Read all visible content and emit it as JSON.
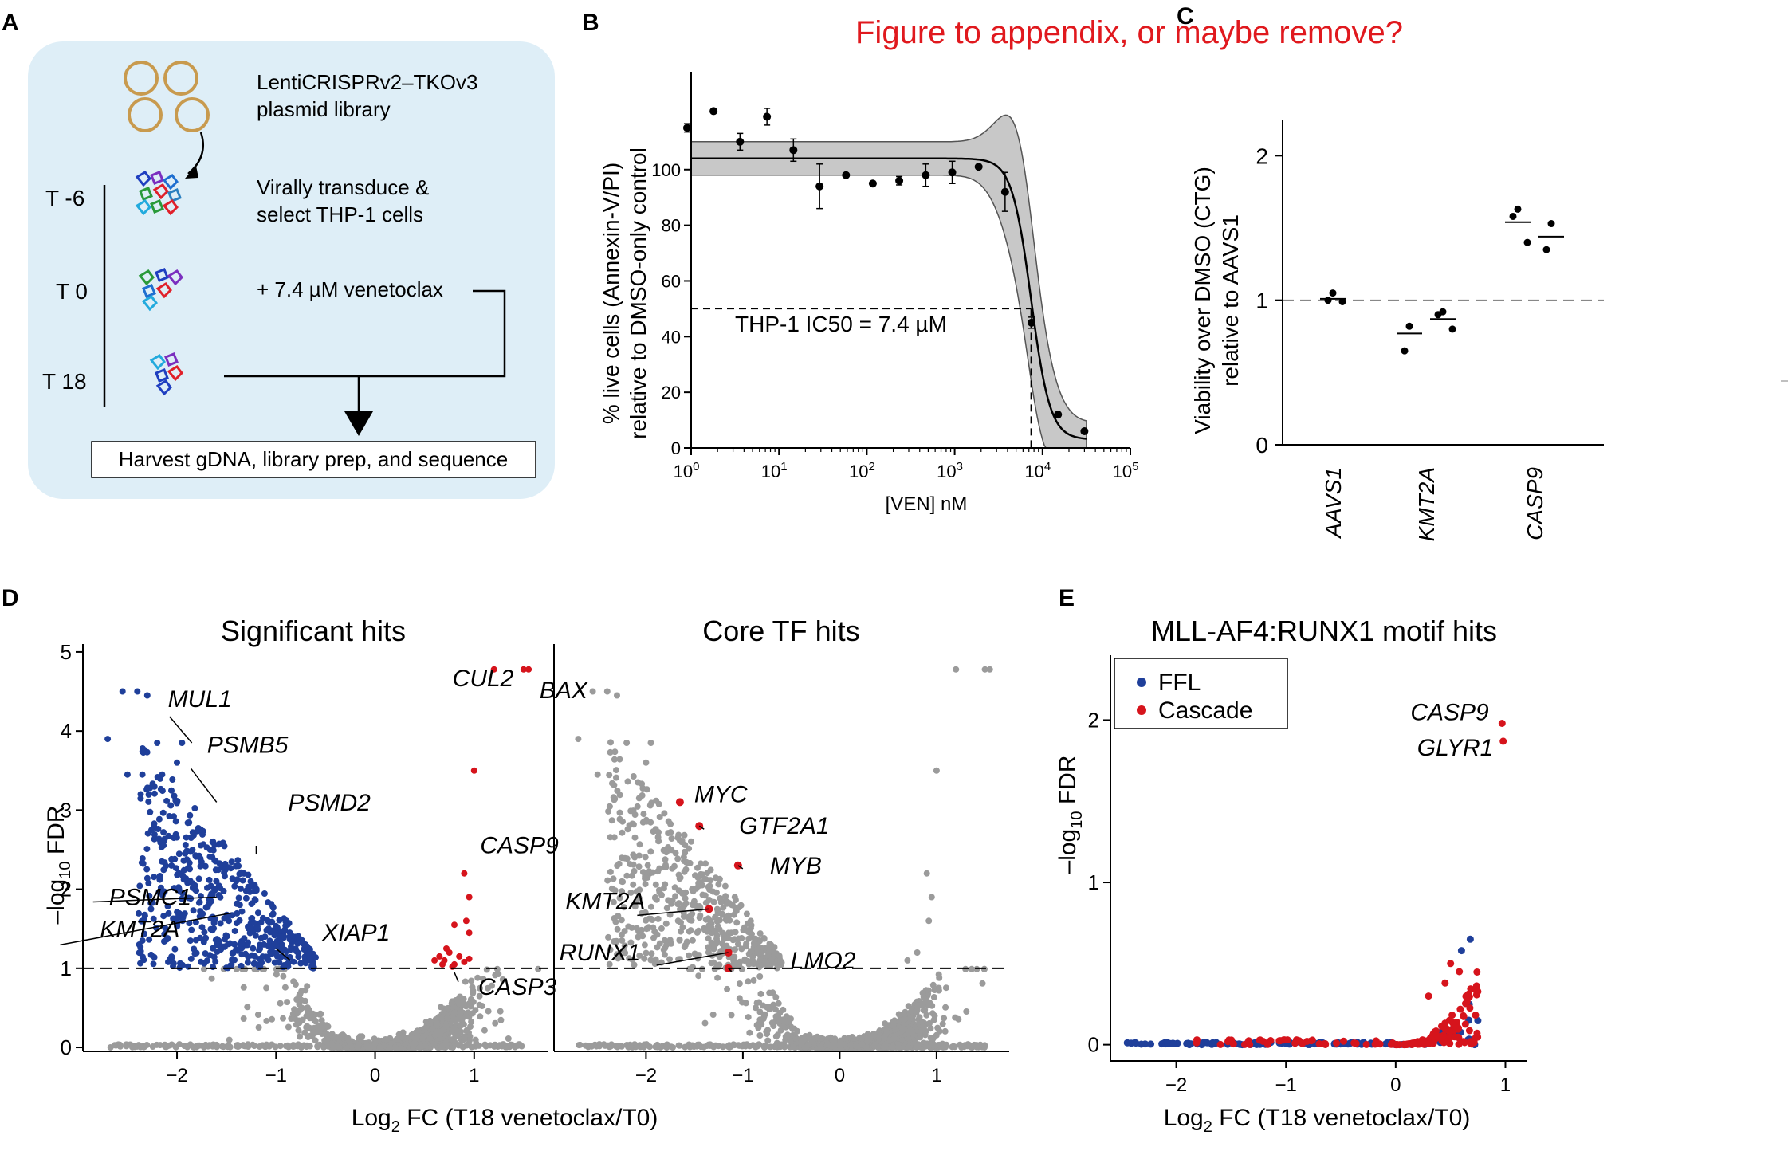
{
  "panel_labels": {
    "a": "A",
    "b": "B",
    "c": "C",
    "d": "D",
    "e": "E"
  },
  "note": "Figure to appendix, or maybe remove?",
  "colors": {
    "note": "#e0191e",
    "panel_bg": "#deeef7",
    "blue": "#1f3f9a",
    "red": "#d6141c",
    "grey": "#9b9b9b",
    "ci_band": "#c8c8c8",
    "plasmid": "#c89a4e"
  },
  "panel_a": {
    "library_l1": "LentiCRISPRv2–TKOv3",
    "library_l2": "plasmid library",
    "step1_l1": "Virally transduce &",
    "step1_l2": "select THP-1 cells",
    "step2": "+ 7.4 µM venetoclax",
    "t_minus6": "T -6",
    "t0": "T 0",
    "t18": "T 18",
    "harvest": "Harvest gDNA, library prep, and sequence"
  },
  "chart_data": [
    {
      "panel": "B",
      "type": "scatter",
      "ylabel_l1": "% live cells (Annexin-V/PI)",
      "ylabel_l2": "relative to DMSO-only control",
      "xlabel": "[VEN] nM",
      "xscale": "log",
      "xlim_log10": [
        0,
        5
      ],
      "ylim": [
        0,
        130
      ],
      "yticks": [
        "0",
        "20",
        "40",
        "60",
        "80",
        "100"
      ],
      "xticks_base": "10",
      "xticks_exp": [
        "0",
        "1",
        "2",
        "3",
        "4",
        "5"
      ],
      "annotation": "THP-1 IC50 = 7.4 µM",
      "ic50_nM": 7400,
      "x": [
        0.9,
        1.8,
        3.6,
        7.3,
        14.6,
        29,
        58,
        117,
        234,
        469,
        938,
        1875,
        3750,
        7500,
        15000,
        30000
      ],
      "y": [
        115,
        121,
        110,
        119,
        107,
        94,
        98,
        95,
        96,
        98,
        99,
        101,
        92,
        45,
        12,
        6
      ],
      "err": [
        1.5,
        1,
        3,
        3,
        4,
        8,
        1,
        1,
        1.5,
        4,
        4,
        1,
        7,
        2,
        1,
        1
      ],
      "fit_top": 104,
      "fit_bottom": 3,
      "fit_hill": 4,
      "band_half_width": 6
    },
    {
      "panel": "C",
      "type": "scatter",
      "ylabel_l1": "Viability over DMSO (CTG)",
      "ylabel_l2": "relative to AAVS1",
      "ylim": [
        0,
        2.25
      ],
      "yticks": [
        "0",
        "1",
        "2"
      ],
      "reference_line": 1,
      "categories": [
        "AAVS1",
        "KMT2A",
        "CASP9"
      ],
      "groups": [
        {
          "category": "AAVS1",
          "replicates": [
            {
              "points": [
                1.05,
                1.0,
                0.99
              ],
              "mean": 1.01
            }
          ]
        },
        {
          "category": "KMT2A",
          "replicates": [
            {
              "points": [
                0.82,
                0.65
              ],
              "mean": 0.77
            },
            {
              "points": [
                0.92,
                0.9,
                0.8
              ],
              "mean": 0.87
            }
          ]
        },
        {
          "category": "CASP9",
          "replicates": [
            {
              "points": [
                1.63,
                1.58,
                1.4
              ],
              "mean": 1.54
            },
            {
              "points": [
                1.53,
                1.35
              ],
              "mean": 1.44
            }
          ]
        }
      ]
    },
    {
      "panel": "D-left",
      "type": "scatter",
      "title": "Significant hits",
      "xlabel_pre": "Log",
      "xlabel_sub": "2",
      "xlabel_post": " FC (T18 venetoclax/T0)",
      "ylabel_pre": "–log",
      "ylabel_sub": "10",
      "ylabel_post": " FDR",
      "xlim": [
        -2.95,
        1.75
      ],
      "ylim": [
        -0.05,
        5.1
      ],
      "xticks": [
        -2,
        -1,
        0,
        1
      ],
      "xtick_labels": [
        "−2",
        "−1",
        "0",
        "1"
      ],
      "yticks": [
        0,
        1,
        2,
        3,
        4,
        5
      ],
      "ytick_labels": [
        "0",
        "1",
        "2",
        "3",
        "4",
        "5"
      ],
      "threshold": 1,
      "series": [
        {
          "color_key": "grey",
          "points": []
        },
        {
          "color_key": "blue",
          "points": []
        },
        {
          "color_key": "red",
          "points": [
            [
              1.2,
              4.78
            ],
            [
              1.5,
              4.78
            ],
            [
              1.55,
              4.78
            ],
            [
              1.0,
              3.5
            ],
            [
              0.9,
              2.2
            ],
            [
              0.95,
              1.9
            ],
            [
              0.92,
              1.6
            ],
            [
              0.8,
              1.55
            ],
            [
              0.95,
              1.45
            ],
            [
              0.6,
              1.1
            ],
            [
              0.65,
              1.15
            ],
            [
              0.7,
              1.1
            ],
            [
              0.75,
              1.2
            ],
            [
              0.8,
              1.05
            ],
            [
              0.85,
              1.15
            ],
            [
              0.72,
              1.25
            ],
            [
              0.9,
              1.08
            ],
            [
              0.78,
              1.02
            ],
            [
              0.95,
              1.12
            ],
            [
              0.68,
              1.05
            ]
          ]
        }
      ],
      "labels": [
        {
          "text": "CUL2",
          "x": 1.2,
          "y": 4.78
        },
        {
          "text": "BAX",
          "x": 1.5,
          "y": 4.78
        },
        {
          "text": "MUL1",
          "x": -1.85,
          "y": 3.85
        },
        {
          "text": "PSMB5",
          "x": -1.6,
          "y": 3.1
        },
        {
          "text": "PSMD2",
          "x": -1.2,
          "y": 2.55
        },
        {
          "text": "CASP9",
          "x": 0.9,
          "y": 2.2
        },
        {
          "text": "PSMC1",
          "x": -1.6,
          "y": 1.9
        },
        {
          "text": "KMT2A",
          "x": -1.45,
          "y": 1.7
        },
        {
          "text": "XIAP1",
          "x": -1.0,
          "y": 1.25
        },
        {
          "text": "CASP3",
          "x": 0.8,
          "y": 0.95
        }
      ]
    },
    {
      "panel": "D-right",
      "type": "scatter",
      "title": "Core TF hits",
      "xlim": [
        -2.95,
        1.75
      ],
      "ylim": [
        -0.05,
        5.1
      ],
      "xticks": [
        -2,
        -1,
        0,
        1
      ],
      "xtick_labels": [
        "−2",
        "−1",
        "0",
        "1"
      ],
      "threshold": 1,
      "series": [
        {
          "color_key": "grey",
          "points": []
        },
        {
          "color_key": "red",
          "points": [
            [
              -1.65,
              3.1
            ],
            [
              -1.45,
              2.8
            ],
            [
              -1.05,
              2.3
            ],
            [
              -1.35,
              1.75
            ],
            [
              -1.15,
              1.2
            ],
            [
              -1.15,
              1.0
            ]
          ]
        }
      ],
      "labels": [
        {
          "text": "MYC",
          "x": -1.65,
          "y": 3.1
        },
        {
          "text": "GTF2A1",
          "x": -1.45,
          "y": 2.8
        },
        {
          "text": "MYB",
          "x": -1.05,
          "y": 2.3
        },
        {
          "text": "KMT2A",
          "x": -1.35,
          "y": 1.75
        },
        {
          "text": "RUNX1",
          "x": -1.15,
          "y": 1.2
        },
        {
          "text": "LMO2",
          "x": -1.15,
          "y": 1.0
        }
      ]
    },
    {
      "panel": "E",
      "type": "scatter",
      "title": "MLL-AF4:RUNX1 motif hits",
      "xlabel_pre": "Log",
      "xlabel_sub": "2",
      "xlabel_post": " FC (T18 venetoclax/T0)",
      "ylabel_pre": "–log",
      "ylabel_sub": "10",
      "ylabel_post": " FDR",
      "xlim": [
        -2.6,
        1.2
      ],
      "ylim": [
        -0.1,
        2.4
      ],
      "xticks": [
        -2,
        -1,
        0,
        1
      ],
      "xtick_labels": [
        "−2",
        "−1",
        "0",
        "1"
      ],
      "yticks": [
        0,
        1,
        2
      ],
      "ytick_labels": [
        "0",
        "1",
        "2"
      ],
      "legend": [
        "FFL",
        "Cascade"
      ],
      "legend_position": "top-left",
      "series": [
        {
          "name": "FFL",
          "color_key": "blue",
          "points": []
        },
        {
          "name": "Cascade",
          "color_key": "red",
          "points": [
            [
              0.97,
              1.98
            ],
            [
              0.98,
              1.87
            ]
          ]
        }
      ],
      "labels": [
        {
          "text": "CASP9",
          "x": 0.97,
          "y": 1.98
        },
        {
          "text": "GLYR1",
          "x": 0.98,
          "y": 1.87
        }
      ]
    }
  ]
}
